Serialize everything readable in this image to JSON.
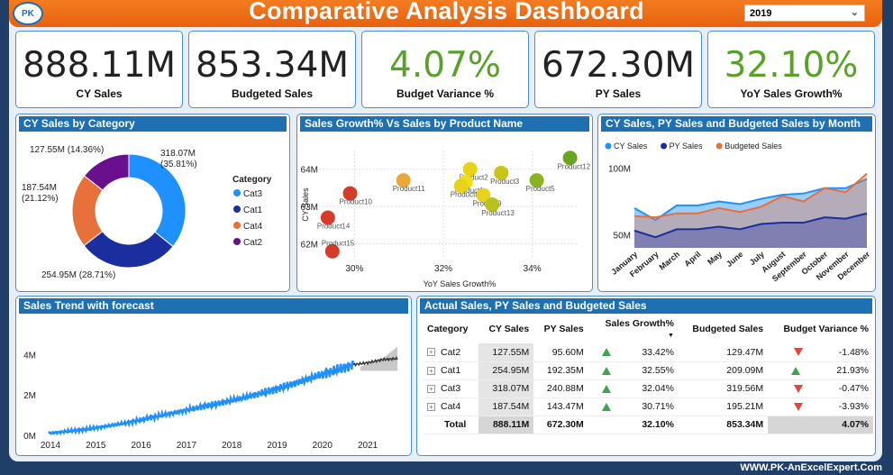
{
  "header": {
    "title": "Comparative Analysis Dashboard",
    "year_selected": "2019"
  },
  "kpis": [
    {
      "value": "888.11M",
      "label": "CY Sales",
      "color": "#222222"
    },
    {
      "value": "853.34M",
      "label": "Budgeted Sales",
      "color": "#222222"
    },
    {
      "value": "4.07%",
      "label": "Budget Variance %",
      "color": "#5aa12a"
    },
    {
      "value": "672.30M",
      "label": "PY Sales",
      "color": "#222222"
    },
    {
      "value": "32.10%",
      "label": "YoY Sales Growth%",
      "color": "#5aa12a"
    }
  ],
  "panels": {
    "category": "CY Sales by Category",
    "scatter": "Sales Growth% Vs Sales by Product Name",
    "month": "CY Sales, PY Sales and Budgeted Sales by Month",
    "trend": "Sales Trend with forecast",
    "table": "Actual Sales, PY Sales and Budgeted Sales"
  },
  "chart_data": [
    {
      "type": "pie",
      "title": "CY Sales by Category",
      "legend_title": "Category",
      "legend_position": "right",
      "slices": [
        {
          "name": "Cat3",
          "value": 318.07,
          "label": "318.07M",
          "pct": "(35.81%)",
          "color": "#1e90ff"
        },
        {
          "name": "Cat1",
          "value": 254.95,
          "label": "254.95M (28.71%)",
          "pct": "",
          "color": "#1a2ea0"
        },
        {
          "name": "Cat4",
          "value": 187.54,
          "label": "187.54M",
          "pct": "(21.12%)",
          "color": "#e8703a"
        },
        {
          "name": "Cat2",
          "value": 127.55,
          "label": "127.55M (14.36%)",
          "pct": "",
          "color": "#6a0f8e"
        }
      ]
    },
    {
      "type": "scatter",
      "title": "Sales Growth% Vs Sales by Product Name",
      "xlabel": "YoY Sales Growth%",
      "ylabel": "CY Sales",
      "x_ticks": [
        "30%",
        "32%",
        "34%"
      ],
      "y_ticks": [
        "62M",
        "63M",
        "64M"
      ],
      "xlim": [
        29.2,
        35
      ],
      "ylim": [
        61.6,
        64.5
      ],
      "points": [
        {
          "name": "Product12",
          "x": 34.85,
          "y": 64.3,
          "color": "#6aa51f"
        },
        {
          "name": "Product2",
          "x": 32.6,
          "y": 64.0,
          "color": "#e8d21a"
        },
        {
          "name": "Product3",
          "x": 33.3,
          "y": 63.9,
          "color": "#c8c41a"
        },
        {
          "name": "Product11",
          "x": 31.1,
          "y": 63.7,
          "color": "#e8a83a"
        },
        {
          "name": "Product1",
          "x": 32.5,
          "y": 63.65,
          "color": "#f0e010"
        },
        {
          "name": "Product8",
          "x": 32.4,
          "y": 63.55,
          "color": "#e8d21a"
        },
        {
          "name": "Product5",
          "x": 34.1,
          "y": 63.7,
          "color": "#8ab41f"
        },
        {
          "name": "Product9",
          "x": 32.9,
          "y": 63.3,
          "color": "#e8d21a"
        },
        {
          "name": "Product13",
          "x": 33.1,
          "y": 63.05,
          "color": "#b8c21a"
        },
        {
          "name": "Product10",
          "x": 29.9,
          "y": 63.35,
          "color": "#d63b2a"
        },
        {
          "name": "Product14",
          "x": 29.4,
          "y": 62.7,
          "color": "#d63b2a"
        },
        {
          "name": "Product15",
          "x": 29.5,
          "y": 61.8,
          "color": "#d63b2a"
        }
      ]
    },
    {
      "type": "area",
      "title": "CY Sales, PY Sales and Budgeted Sales by Month",
      "legend_position": "top-left",
      "categories": [
        "January",
        "February",
        "March",
        "April",
        "May",
        "June",
        "July",
        "August",
        "September",
        "October",
        "November",
        "December"
      ],
      "y_ticks": [
        "100M",
        "50M"
      ],
      "ylim": [
        40,
        110
      ],
      "series": [
        {
          "name": "CY Sales",
          "color": "#1e90ff",
          "values": [
            70,
            61,
            72,
            72,
            75,
            73,
            77,
            80,
            81,
            85,
            85,
            92
          ]
        },
        {
          "name": "PY Sales",
          "color": "#1a2ea0",
          "values": [
            53,
            48,
            54,
            54,
            56,
            54,
            58,
            59,
            59,
            63,
            62,
            66
          ]
        },
        {
          "name": "Budgeted Sales",
          "color": "#e8703a",
          "values": [
            64,
            63,
            66,
            66,
            70,
            67,
            71,
            79,
            75,
            85,
            82,
            96
          ]
        }
      ]
    },
    {
      "type": "line",
      "title": "Sales Trend with forecast",
      "x_ticks": [
        "2014",
        "2015",
        "2016",
        "2017",
        "2018",
        "2019",
        "2020",
        "2021"
      ],
      "y_ticks": [
        "0M",
        "2M",
        "4M"
      ],
      "ylim": [
        0,
        5
      ],
      "series": [
        {
          "name": "",
          "color": "#1e90ff",
          "values": [
            0.1,
            0.3,
            0.6,
            1.0,
            1.4,
            1.8,
            2.3,
            2.9,
            3.5
          ]
        },
        {
          "name": "",
          "color": "#333333",
          "values": [
            3.5,
            3.6,
            3.75,
            3.8
          ]
        }
      ]
    }
  ],
  "table": {
    "columns": [
      "Category",
      "CY Sales",
      "PY Sales",
      "Sales Growth%",
      "Budgeted Sales",
      "Budget Variance %"
    ],
    "rows": [
      {
        "cat": "Cat2",
        "cy": "127.55M",
        "py": "95.60M",
        "growth": "33.42%",
        "growth_dir": "up",
        "budget": "129.47M",
        "var": "-1.48%",
        "var_dir": "down"
      },
      {
        "cat": "Cat1",
        "cy": "254.95M",
        "py": "192.35M",
        "growth": "32.55%",
        "growth_dir": "up",
        "budget": "209.09M",
        "var": "21.93%",
        "var_dir": "up"
      },
      {
        "cat": "Cat3",
        "cy": "318.07M",
        "py": "240.88M",
        "growth": "32.04%",
        "growth_dir": "up",
        "budget": "319.56M",
        "var": "-0.47%",
        "var_dir": "down"
      },
      {
        "cat": "Cat4",
        "cy": "187.54M",
        "py": "143.47M",
        "growth": "30.71%",
        "growth_dir": "up",
        "budget": "195.21M",
        "var": "-3.93%",
        "var_dir": "down"
      }
    ],
    "total": {
      "cat": "Total",
      "cy": "888.11M",
      "py": "672.30M",
      "growth": "32.10%",
      "budget": "853.34M",
      "var": "4.07%"
    }
  },
  "footer": "WWW.PK-AnExcelExpert.Com"
}
